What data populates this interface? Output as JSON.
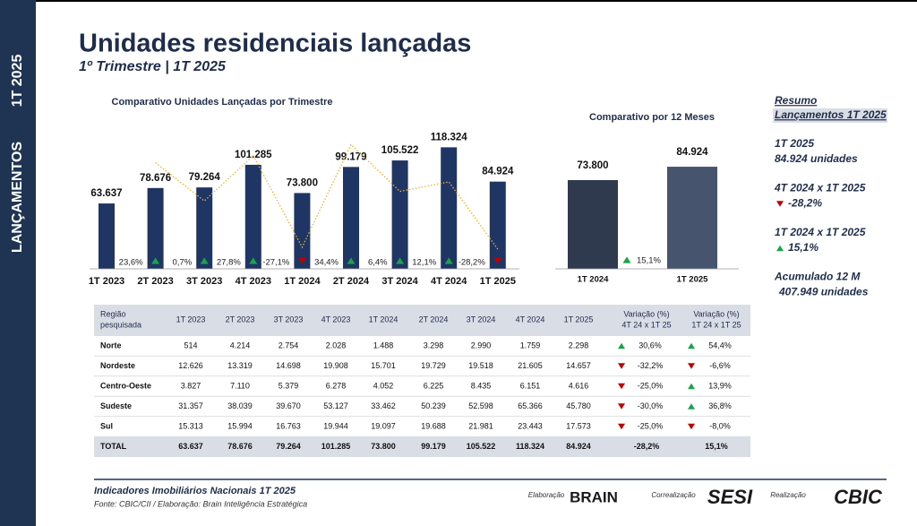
{
  "sidebar": {
    "title": "LANÇAMENTOS",
    "period": "1T 2025"
  },
  "header": {
    "title": "Unidades residenciais lançadas",
    "subtitle": "1º Trimestre | 1T 2025"
  },
  "chart_data": [
    {
      "type": "bar",
      "title": "Comparativo Unidades Lançadas por Trimestre",
      "categories": [
        "1T 2023",
        "2T 2023",
        "3T 2023",
        "4T 2023",
        "1T 2024",
        "2T 2024",
        "3T 2024",
        "4T 2024",
        "1T 2025"
      ],
      "ylim": [
        0,
        130000
      ],
      "y2lim": [
        -40,
        40
      ],
      "series": [
        {
          "type": "bar",
          "color": "#1f3563",
          "values": [
            63637,
            78676,
            79264,
            101285,
            73800,
            99179,
            105522,
            118324,
            84924
          ],
          "value_labels": [
            "63.637",
            "78.676",
            "79.264",
            "101.285",
            "73.800",
            "99.179",
            "105.522",
            "118.324",
            "84.924"
          ]
        },
        {
          "type": "line",
          "axis": "y2",
          "color": "#f2b233",
          "values": [
            null,
            23.6,
            0.7,
            27.8,
            -27.1,
            34.4,
            6.4,
            12.1,
            -28.2
          ],
          "value_labels": [
            null,
            "23,6%",
            "0,7%",
            "27,8%",
            "-27,1%",
            "34,4%",
            "6,4%",
            "12,1%",
            "-28,2%"
          ]
        }
      ]
    },
    {
      "type": "bar",
      "title": "Comparativo por 12 Meses",
      "categories": [
        "1T 2024",
        "1T 2025"
      ],
      "values": [
        73800,
        84924
      ],
      "value_labels": [
        "73.800",
        "84.924"
      ],
      "colors": [
        "#2f3a4f",
        "#46546e"
      ],
      "ylim": [
        0,
        120000
      ],
      "annotation": "15,1%"
    }
  ],
  "summary": {
    "title": [
      "Resumo",
      "Lançamentos 1T 2025"
    ],
    "items": [
      {
        "label": "1T 2025",
        "value": "84.924  unidades"
      },
      {
        "label": "4T 2024 x 1T 2025",
        "value": "-28,2%"
      },
      {
        "label": "1T 2024 x 1T 2025",
        "value": "15,1%"
      },
      {
        "label": "Acumulado 12 M",
        "value": "407.949 unidades"
      }
    ]
  },
  "table": {
    "header": [
      [
        "Região",
        "pesquisada"
      ],
      [
        "1T 2023"
      ],
      [
        "2T 2023"
      ],
      [
        "3T 2023"
      ],
      [
        "4T 2023"
      ],
      [
        "1T 2024"
      ],
      [
        "2T 2024"
      ],
      [
        "3T 2024"
      ],
      [
        "4T 2024"
      ],
      [
        "1T 2025"
      ],
      [
        "Variação (%)",
        "4T 24 x 1T 25"
      ],
      [
        "Variação (%)",
        "1T 24 x 1T 25"
      ]
    ],
    "rows": [
      [
        "Norte",
        "514",
        "4.214",
        "2.754",
        "2.028",
        "1.488",
        "3.298",
        "2.990",
        "1.759",
        "2.298",
        "30,6%",
        "54,4%"
      ],
      [
        "Nordeste",
        "12.626",
        "13.319",
        "14.698",
        "19.908",
        "15.701",
        "19.729",
        "19.518",
        "21.605",
        "14.657",
        "-32,2%",
        "-6,6%"
      ],
      [
        "Centro-Oeste",
        "3.827",
        "7.110",
        "5.379",
        "6.278",
        "4.052",
        "6.225",
        "8.435",
        "6.151",
        "4.616",
        "-25,0%",
        "13,9%"
      ],
      [
        "Sudeste",
        "31.357",
        "38.039",
        "39.670",
        "53.127",
        "33.462",
        "50.239",
        "52.598",
        "65.366",
        "45.780",
        "-30,0%",
        "36,8%"
      ],
      [
        "Sul",
        "15.313",
        "15.994",
        "16.763",
        "19.944",
        "19.097",
        "19.688",
        "21.981",
        "23.443",
        "17.573",
        "-25,0%",
        "-8,0%"
      ]
    ],
    "total": [
      "TOTAL",
      "63.637",
      "78.676",
      "79.264",
      "101.285",
      "73.800",
      "99.179",
      "105.522",
      "118.324",
      "84.924",
      "-28,2%",
      "15,1%"
    ]
  },
  "footer": {
    "title": "Indicadores Imobiliários Nacionais 1T 2025",
    "source": "Fonte: CBIC/CII / Elaboração: Brain Inteligência Estratégica",
    "credits": [
      {
        "role": "Elaboração",
        "name": "BRAIN"
      },
      {
        "role": "Correalização",
        "name": "SESI"
      },
      {
        "role": "Realização",
        "name": "CBIC"
      }
    ]
  }
}
